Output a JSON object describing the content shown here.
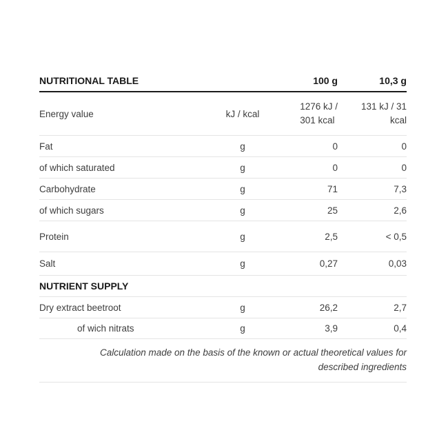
{
  "colors": {
    "background": "#ffffff",
    "text": "#3d3d3d",
    "heading": "#1a1a1a",
    "divider": "#e4e4e4",
    "header_rule": "#1a1a1a"
  },
  "table": {
    "header": {
      "title": "NUTRITIONAL TABLE",
      "unit_col": "",
      "per_100g_col": "100 g",
      "per_portion_col": "10,3 g"
    },
    "rows": [
      {
        "label": "Energy value",
        "unit": "kJ / kcal",
        "per_100g": "1276 kJ /\n301 kcal",
        "per_portion": "131 kJ / 31\nkcal"
      },
      {
        "label": "Fat",
        "unit": "g",
        "per_100g": "0",
        "per_portion": "0"
      },
      {
        "label": "of which saturated",
        "unit": "g",
        "per_100g": "0",
        "per_portion": "0"
      },
      {
        "label": "Carbohydrate",
        "unit": "g",
        "per_100g": "71",
        "per_portion": "7,3"
      },
      {
        "label": "of which sugars",
        "unit": "g",
        "per_100g": "25",
        "per_portion": "2,6"
      },
      {
        "label": "Protein",
        "unit": "g",
        "per_100g": "2,5",
        "per_portion": "< 0,5"
      },
      {
        "label": "Salt",
        "unit": "g",
        "per_100g": "0,27",
        "per_portion": "0,03"
      }
    ],
    "section": {
      "title": "NUTRIENT SUPPLY"
    },
    "supply_rows": [
      {
        "label": "Dry extract beetroot",
        "unit": "g",
        "per_100g": "26,2",
        "per_portion": "2,7"
      },
      {
        "label": "of wich nitrats",
        "unit": "g",
        "per_100g": "3,9",
        "per_portion": "0,4"
      }
    ],
    "footnote": "Calculation made on the basis of the known or actual theoretical values for\ndescribed ingredients"
  }
}
